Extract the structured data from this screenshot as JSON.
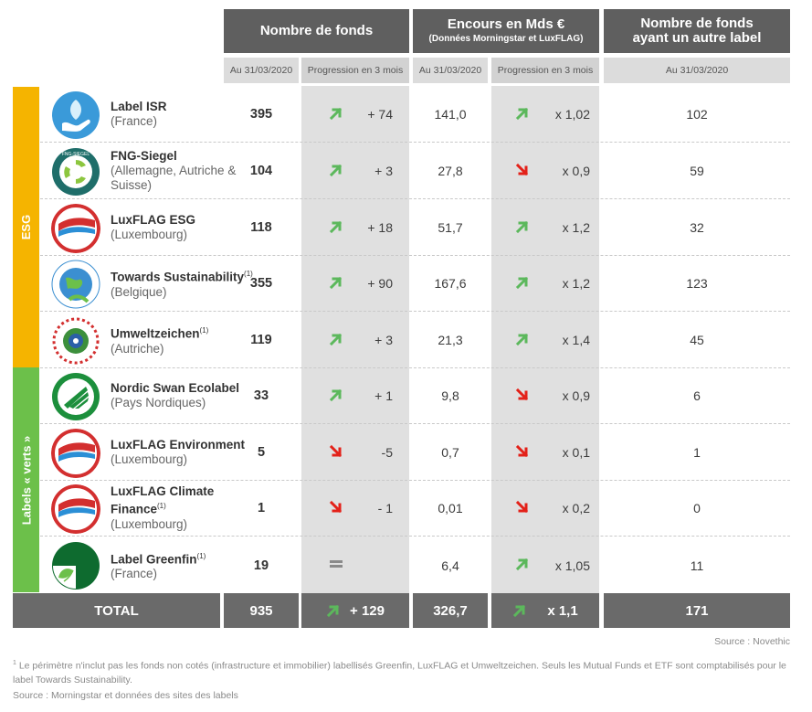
{
  "header": {
    "col_funds": "Nombre de fonds",
    "col_aum": "Encours en Mds €",
    "col_aum_sub": "(Données Morningstar et LuxFLAG)",
    "col_other_label_line1": "Nombre de fonds",
    "col_other_label_line2": "ayant un autre label",
    "sub_date": "Au 31/03/2020",
    "sub_prog": "Progression en 3 mois"
  },
  "side": {
    "esg": "ESG",
    "green": "Labels « verts »",
    "esg_color": "#f5b400",
    "green_color": "#6cc04a"
  },
  "rows": [
    {
      "name": "Label ISR",
      "sup": "",
      "country": "(France)",
      "funds": "395",
      "dir": "up",
      "prog": "+ 74",
      "aum": "141,0",
      "aum_dir": "up",
      "aum_prog": "x 1,02",
      "other": "102",
      "logo": "isr-hand-icon"
    },
    {
      "name": "FNG-Siegel",
      "sup": "",
      "country": "(Allemagne, Autriche & Suisse)",
      "funds": "104",
      "dir": "up",
      "prog": "+ 3",
      "aum": "27,8",
      "aum_dir": "down",
      "aum_prog": "x 0,9",
      "other": "59",
      "logo": "fng-icon"
    },
    {
      "name": "LuxFLAG ESG",
      "sup": "",
      "country": "(Luxembourg)",
      "funds": "118",
      "dir": "up",
      "prog": "+ 18",
      "aum": "51,7",
      "aum_dir": "up",
      "aum_prog": "x 1,2",
      "other": "32",
      "logo": "luxflag-icon"
    },
    {
      "name": "Towards Sustainability",
      "sup": "(1)",
      "country": "(Belgique)",
      "funds": "355",
      "dir": "up",
      "prog": "+ 90",
      "aum": "167,6",
      "aum_dir": "up",
      "aum_prog": "x 1,2",
      "other": "123",
      "logo": "globe-icon"
    },
    {
      "name": "Umweltzeichen",
      "sup": "(1)",
      "country": "(Autriche)",
      "funds": "119",
      "dir": "up",
      "prog": "+ 3",
      "aum": "21,3",
      "aum_dir": "up",
      "aum_prog": "x 1,4",
      "other": "45",
      "logo": "umweltzeichen-icon"
    },
    {
      "name": "Nordic Swan Ecolabel",
      "sup": "",
      "country": "(Pays Nordiques)",
      "funds": "33",
      "dir": "up",
      "prog": "+ 1",
      "aum": "9,8",
      "aum_dir": "down",
      "aum_prog": "x 0,9",
      "other": "6",
      "logo": "swan-icon"
    },
    {
      "name": "LuxFLAG Environment",
      "sup": "",
      "country": "(Luxembourg)",
      "funds": "5",
      "dir": "down",
      "prog": "-5",
      "aum": "0,7",
      "aum_dir": "down",
      "aum_prog": "x 0,1",
      "other": "1",
      "logo": "luxflag-icon"
    },
    {
      "name": "LuxFLAG Climate Finance",
      "sup": "(1)",
      "country": "(Luxembourg)",
      "funds": "1",
      "dir": "down",
      "prog": "- 1",
      "aum": "0,01",
      "aum_dir": "down",
      "aum_prog": "x 0,2",
      "other": "0",
      "logo": "luxflag-icon"
    },
    {
      "name": "Label Greenfin",
      "sup": "(1)",
      "country": "(France)",
      "funds": "19",
      "dir": "equal",
      "prog": "",
      "aum": "6,4",
      "aum_dir": "up",
      "aum_prog": "x 1,05",
      "other": "11",
      "logo": "greenfin-icon"
    }
  ],
  "total": {
    "label": "TOTAL",
    "funds": "935",
    "prog": "+ 129",
    "aum": "326,7",
    "aum_prog": "x 1,1",
    "other": "171"
  },
  "source_right": "Source : Novethic",
  "footnote_sup": "1",
  "footnote": "Le périmètre n'inclut pas les fonds non cotés (infrastructure et immobilier) labellisés Greenfin, LuxFLAG et Umweltzeichen. Seuls les Mutual Funds et ETF sont comptabilisés pour le label Towards Sustainability.",
  "source_bottom": "Source : Morningstar et données des sites des labels",
  "colors": {
    "up": "#5cb85c",
    "down": "#e32119",
    "header": "#5f5f5f",
    "total": "#6a6a6a"
  }
}
